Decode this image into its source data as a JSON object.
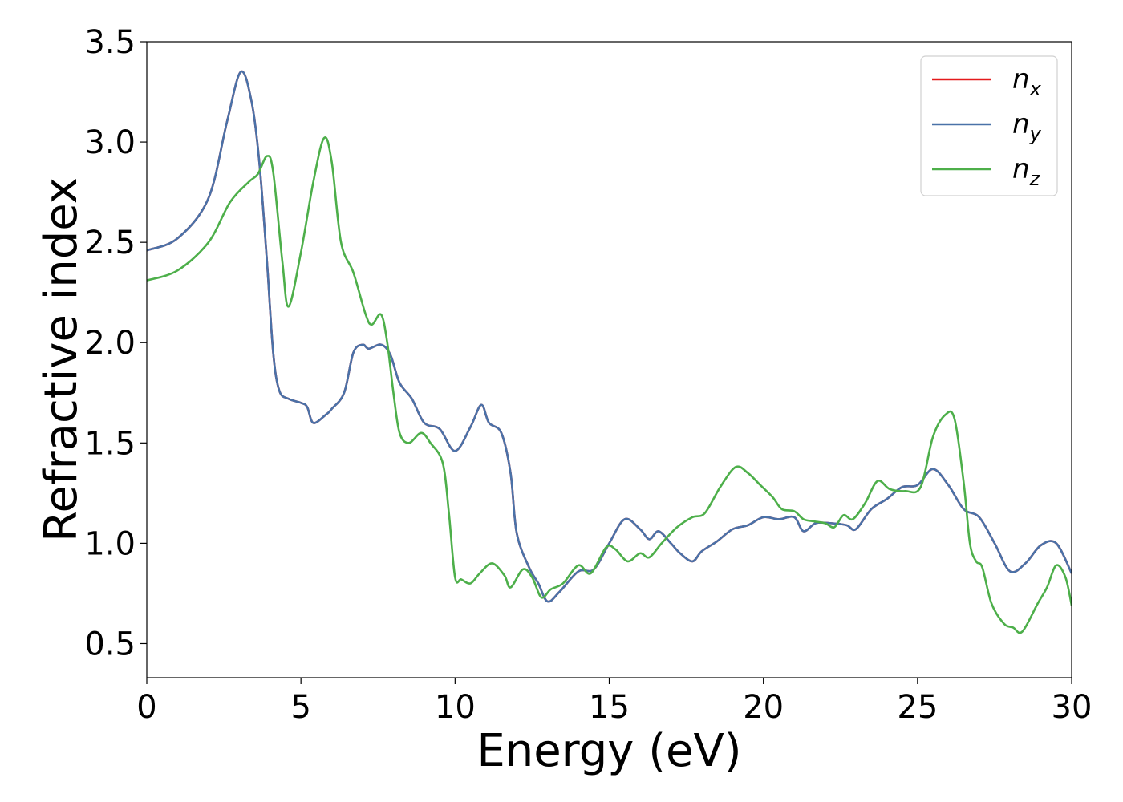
{
  "chart_data": {
    "type": "line",
    "title": "",
    "xlabel": "Energy (eV)",
    "ylabel": "Refractive index",
    "xlim": [
      0,
      30
    ],
    "ylim": [
      0.33,
      3.5
    ],
    "xticks": [
      0,
      5,
      10,
      15,
      20,
      25,
      30
    ],
    "yticks": [
      0.5,
      1.0,
      1.5,
      2.0,
      2.5,
      3.0,
      3.5
    ],
    "xtick_labels": [
      "0",
      "5",
      "10",
      "15",
      "20",
      "25",
      "30"
    ],
    "ytick_labels": [
      "0.5",
      "1.0",
      "1.5",
      "2.0",
      "2.5",
      "3.0",
      "3.5"
    ],
    "grid": false,
    "legend_position": "top-right",
    "series": [
      {
        "name": "n_x",
        "label_main": "n",
        "label_sub": "x",
        "color": "#e41a1c",
        "points": [
          [
            0,
            2.46
          ],
          [
            1,
            2.52
          ],
          [
            2,
            2.72
          ],
          [
            2.6,
            3.1
          ],
          [
            3.05,
            3.35
          ],
          [
            3.4,
            3.2
          ],
          [
            3.65,
            2.9
          ],
          [
            3.9,
            2.4
          ],
          [
            4.1,
            1.95
          ],
          [
            4.3,
            1.76
          ],
          [
            4.6,
            1.72
          ],
          [
            5,
            1.7
          ],
          [
            5.2,
            1.68
          ],
          [
            5.4,
            1.6
          ],
          [
            5.8,
            1.64
          ],
          [
            6,
            1.67
          ],
          [
            6.4,
            1.75
          ],
          [
            6.7,
            1.95
          ],
          [
            7,
            1.99
          ],
          [
            7.2,
            1.97
          ],
          [
            7.6,
            1.99
          ],
          [
            7.9,
            1.94
          ],
          [
            8.2,
            1.8
          ],
          [
            8.6,
            1.72
          ],
          [
            9,
            1.6
          ],
          [
            9.5,
            1.57
          ],
          [
            10,
            1.46
          ],
          [
            10.5,
            1.58
          ],
          [
            10.85,
            1.69
          ],
          [
            11.1,
            1.6
          ],
          [
            11.5,
            1.55
          ],
          [
            11.8,
            1.35
          ],
          [
            12,
            1.05
          ],
          [
            12.4,
            0.88
          ],
          [
            12.7,
            0.8
          ],
          [
            13,
            0.71
          ],
          [
            13.4,
            0.76
          ],
          [
            14,
            0.86
          ],
          [
            14.5,
            0.87
          ],
          [
            15,
            1.0
          ],
          [
            15.5,
            1.12
          ],
          [
            16,
            1.07
          ],
          [
            16.3,
            1.02
          ],
          [
            16.6,
            1.06
          ],
          [
            17,
            1.0
          ],
          [
            17.3,
            0.95
          ],
          [
            17.7,
            0.91
          ],
          [
            18,
            0.96
          ],
          [
            18.5,
            1.01
          ],
          [
            19,
            1.07
          ],
          [
            19.5,
            1.09
          ],
          [
            20,
            1.13
          ],
          [
            20.5,
            1.12
          ],
          [
            21,
            1.13
          ],
          [
            21.3,
            1.06
          ],
          [
            21.7,
            1.1
          ],
          [
            22.2,
            1.1
          ],
          [
            22.7,
            1.09
          ],
          [
            23,
            1.07
          ],
          [
            23.5,
            1.17
          ],
          [
            24,
            1.22
          ],
          [
            24.5,
            1.28
          ],
          [
            25,
            1.29
          ],
          [
            25.5,
            1.37
          ],
          [
            26,
            1.29
          ],
          [
            26.5,
            1.17
          ],
          [
            27,
            1.13
          ],
          [
            27.5,
            1.0
          ],
          [
            28,
            0.86
          ],
          [
            28.5,
            0.9
          ],
          [
            29,
            0.99
          ],
          [
            29.5,
            1.0
          ],
          [
            30,
            0.85
          ]
        ]
      },
      {
        "name": "n_y",
        "label_main": "n",
        "label_sub": "y",
        "color": "#4a72a8",
        "points": [
          [
            0,
            2.46
          ],
          [
            1,
            2.52
          ],
          [
            2,
            2.72
          ],
          [
            2.6,
            3.1
          ],
          [
            3.05,
            3.35
          ],
          [
            3.4,
            3.2
          ],
          [
            3.65,
            2.9
          ],
          [
            3.9,
            2.4
          ],
          [
            4.1,
            1.95
          ],
          [
            4.3,
            1.76
          ],
          [
            4.6,
            1.72
          ],
          [
            5,
            1.7
          ],
          [
            5.2,
            1.68
          ],
          [
            5.4,
            1.6
          ],
          [
            5.8,
            1.64
          ],
          [
            6,
            1.67
          ],
          [
            6.4,
            1.75
          ],
          [
            6.7,
            1.95
          ],
          [
            7,
            1.99
          ],
          [
            7.2,
            1.97
          ],
          [
            7.6,
            1.99
          ],
          [
            7.9,
            1.94
          ],
          [
            8.2,
            1.8
          ],
          [
            8.6,
            1.72
          ],
          [
            9,
            1.6
          ],
          [
            9.5,
            1.57
          ],
          [
            10,
            1.46
          ],
          [
            10.5,
            1.58
          ],
          [
            10.85,
            1.69
          ],
          [
            11.1,
            1.6
          ],
          [
            11.5,
            1.55
          ],
          [
            11.8,
            1.35
          ],
          [
            12,
            1.05
          ],
          [
            12.4,
            0.88
          ],
          [
            12.7,
            0.8
          ],
          [
            13,
            0.71
          ],
          [
            13.4,
            0.76
          ],
          [
            14,
            0.86
          ],
          [
            14.5,
            0.87
          ],
          [
            15,
            1.0
          ],
          [
            15.5,
            1.12
          ],
          [
            16,
            1.07
          ],
          [
            16.3,
            1.02
          ],
          [
            16.6,
            1.06
          ],
          [
            17,
            1.0
          ],
          [
            17.3,
            0.95
          ],
          [
            17.7,
            0.91
          ],
          [
            18,
            0.96
          ],
          [
            18.5,
            1.01
          ],
          [
            19,
            1.07
          ],
          [
            19.5,
            1.09
          ],
          [
            20,
            1.13
          ],
          [
            20.5,
            1.12
          ],
          [
            21,
            1.13
          ],
          [
            21.3,
            1.06
          ],
          [
            21.7,
            1.1
          ],
          [
            22.2,
            1.1
          ],
          [
            22.7,
            1.09
          ],
          [
            23,
            1.07
          ],
          [
            23.5,
            1.17
          ],
          [
            24,
            1.22
          ],
          [
            24.5,
            1.28
          ],
          [
            25,
            1.29
          ],
          [
            25.5,
            1.37
          ],
          [
            26,
            1.29
          ],
          [
            26.5,
            1.17
          ],
          [
            27,
            1.13
          ],
          [
            27.5,
            1.0
          ],
          [
            28,
            0.86
          ],
          [
            28.5,
            0.9
          ],
          [
            29,
            0.99
          ],
          [
            29.5,
            1.0
          ],
          [
            30,
            0.85
          ]
        ]
      },
      {
        "name": "n_z",
        "label_main": "n",
        "label_sub": "z",
        "color": "#4daf4a",
        "points": [
          [
            0,
            2.31
          ],
          [
            1,
            2.36
          ],
          [
            2,
            2.5
          ],
          [
            2.7,
            2.7
          ],
          [
            3.3,
            2.8
          ],
          [
            3.6,
            2.84
          ],
          [
            3.9,
            2.93
          ],
          [
            4.1,
            2.85
          ],
          [
            4.4,
            2.4
          ],
          [
            4.6,
            2.18
          ],
          [
            5,
            2.45
          ],
          [
            5.4,
            2.8
          ],
          [
            5.75,
            3.02
          ],
          [
            6,
            2.9
          ],
          [
            6.3,
            2.5
          ],
          [
            6.7,
            2.35
          ],
          [
            7.1,
            2.14
          ],
          [
            7.3,
            2.09
          ],
          [
            7.6,
            2.14
          ],
          [
            7.8,
            2.0
          ],
          [
            8,
            1.75
          ],
          [
            8.2,
            1.55
          ],
          [
            8.5,
            1.5
          ],
          [
            8.9,
            1.55
          ],
          [
            9.2,
            1.5
          ],
          [
            9.6,
            1.4
          ],
          [
            9.8,
            1.15
          ],
          [
            10,
            0.83
          ],
          [
            10.2,
            0.82
          ],
          [
            10.5,
            0.8
          ],
          [
            10.8,
            0.85
          ],
          [
            11.2,
            0.9
          ],
          [
            11.6,
            0.84
          ],
          [
            11.8,
            0.78
          ],
          [
            12.2,
            0.87
          ],
          [
            12.5,
            0.83
          ],
          [
            12.8,
            0.73
          ],
          [
            13.1,
            0.77
          ],
          [
            13.5,
            0.8
          ],
          [
            14,
            0.89
          ],
          [
            14.4,
            0.85
          ],
          [
            14.9,
            0.98
          ],
          [
            15.2,
            0.97
          ],
          [
            15.6,
            0.91
          ],
          [
            16,
            0.95
          ],
          [
            16.3,
            0.93
          ],
          [
            16.7,
            1.0
          ],
          [
            17.2,
            1.08
          ],
          [
            17.7,
            1.13
          ],
          [
            18.1,
            1.15
          ],
          [
            18.6,
            1.28
          ],
          [
            19.1,
            1.38
          ],
          [
            19.5,
            1.35
          ],
          [
            19.9,
            1.29
          ],
          [
            20.3,
            1.23
          ],
          [
            20.6,
            1.17
          ],
          [
            21,
            1.16
          ],
          [
            21.3,
            1.12
          ],
          [
            21.6,
            1.11
          ],
          [
            22,
            1.1
          ],
          [
            22.3,
            1.08
          ],
          [
            22.6,
            1.14
          ],
          [
            22.9,
            1.12
          ],
          [
            23.3,
            1.2
          ],
          [
            23.7,
            1.31
          ],
          [
            24.1,
            1.27
          ],
          [
            24.6,
            1.26
          ],
          [
            25.1,
            1.28
          ],
          [
            25.5,
            1.53
          ],
          [
            25.9,
            1.64
          ],
          [
            26.2,
            1.62
          ],
          [
            26.5,
            1.3
          ],
          [
            26.7,
            1.0
          ],
          [
            26.9,
            0.91
          ],
          [
            27.1,
            0.88
          ],
          [
            27.4,
            0.7
          ],
          [
            27.8,
            0.6
          ],
          [
            28.1,
            0.58
          ],
          [
            28.4,
            0.56
          ],
          [
            28.9,
            0.7
          ],
          [
            29.2,
            0.78
          ],
          [
            29.5,
            0.89
          ],
          [
            29.8,
            0.83
          ],
          [
            30,
            0.69
          ]
        ]
      }
    ]
  }
}
